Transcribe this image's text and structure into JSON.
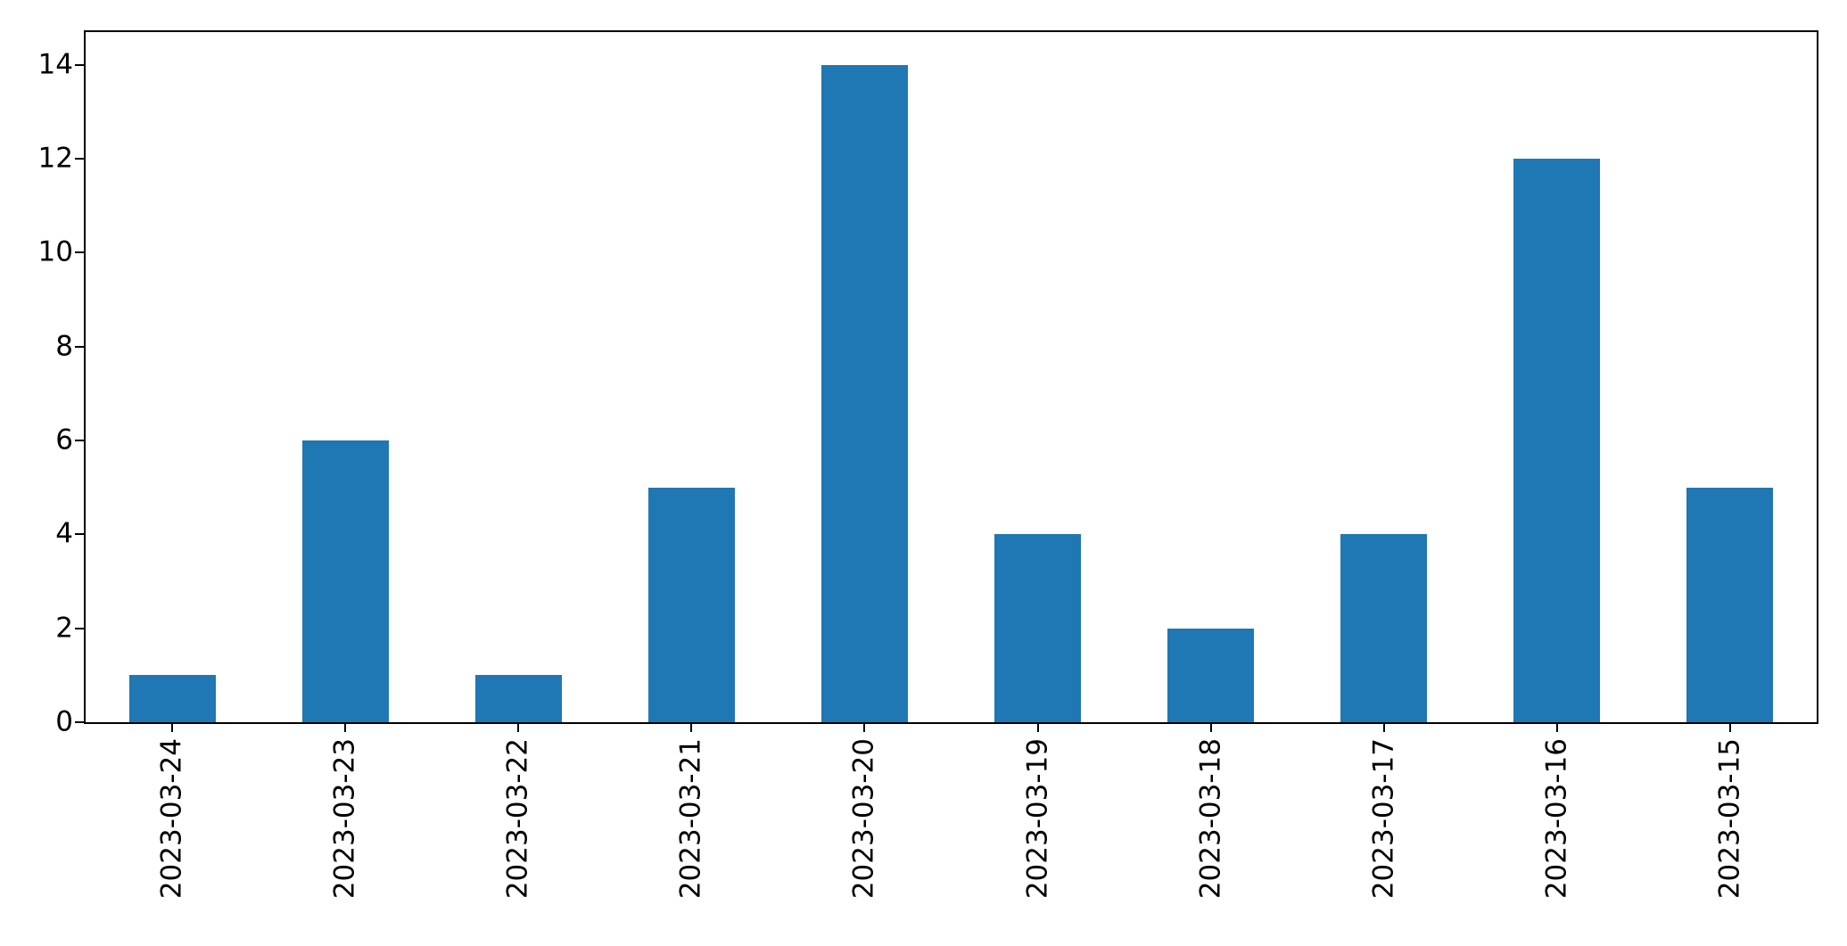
{
  "figure": {
    "background": "#ffffff",
    "axes_line_color": "#000000",
    "tick_label_color": "#000000"
  },
  "chart_data": {
    "type": "bar",
    "title": "",
    "xlabel": "",
    "ylabel": "",
    "categories": [
      "2023-03-24",
      "2023-03-23",
      "2023-03-22",
      "2023-03-21",
      "2023-03-20",
      "2023-03-19",
      "2023-03-18",
      "2023-03-17",
      "2023-03-16",
      "2023-03-15"
    ],
    "values": [
      1,
      6,
      1,
      5,
      14,
      4,
      2,
      4,
      12,
      5
    ],
    "bar_color": "#1f77b4",
    "bar_width_fraction": 0.5,
    "ylim": [
      0,
      14.7
    ],
    "yticks": [
      0,
      2,
      4,
      6,
      8,
      10,
      12,
      14
    ],
    "x_tick_rotation": 90,
    "grid": false,
    "legend": false
  }
}
